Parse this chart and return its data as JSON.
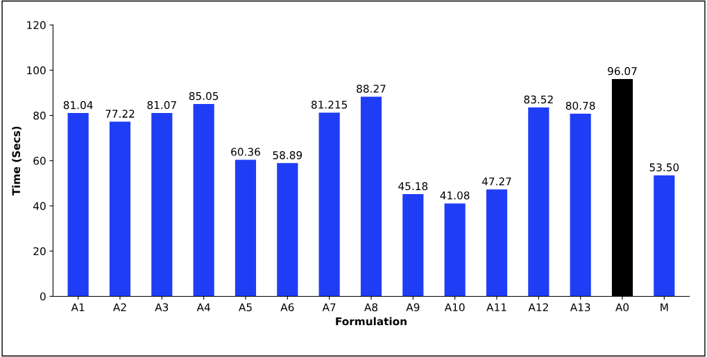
{
  "chart_data": {
    "type": "bar",
    "xlabel": "Formulation",
    "ylabel": "Time (Secs)",
    "categories": [
      "A1",
      "A2",
      "A3",
      "A4",
      "A5",
      "A6",
      "A7",
      "A8",
      "A9",
      "A10",
      "A11",
      "A12",
      "A13",
      "A0",
      "M"
    ],
    "values": [
      81.04,
      77.22,
      81.07,
      85.05,
      60.36,
      58.89,
      81.215,
      88.27,
      45.18,
      41.08,
      47.27,
      83.52,
      80.78,
      96.07,
      53.5
    ],
    "value_labels": [
      "81.04",
      "77.22",
      "81.07",
      "85.05",
      "60.36",
      "58.89",
      "81.215",
      "88.27",
      "45.18",
      "41.08",
      "47.27",
      "83.52",
      "80.78",
      "96.07",
      "53.50"
    ],
    "colors": [
      "#1f3df5",
      "#1f3df5",
      "#1f3df5",
      "#1f3df5",
      "#1f3df5",
      "#1f3df5",
      "#1f3df5",
      "#1f3df5",
      "#1f3df5",
      "#1f3df5",
      "#1f3df5",
      "#1f3df5",
      "#1f3df5",
      "#000000",
      "#1f3df5"
    ],
    "ylim": [
      0,
      120
    ],
    "yticks": [
      0,
      20,
      40,
      60,
      80,
      100,
      120
    ],
    "grid": false,
    "legend": false
  }
}
